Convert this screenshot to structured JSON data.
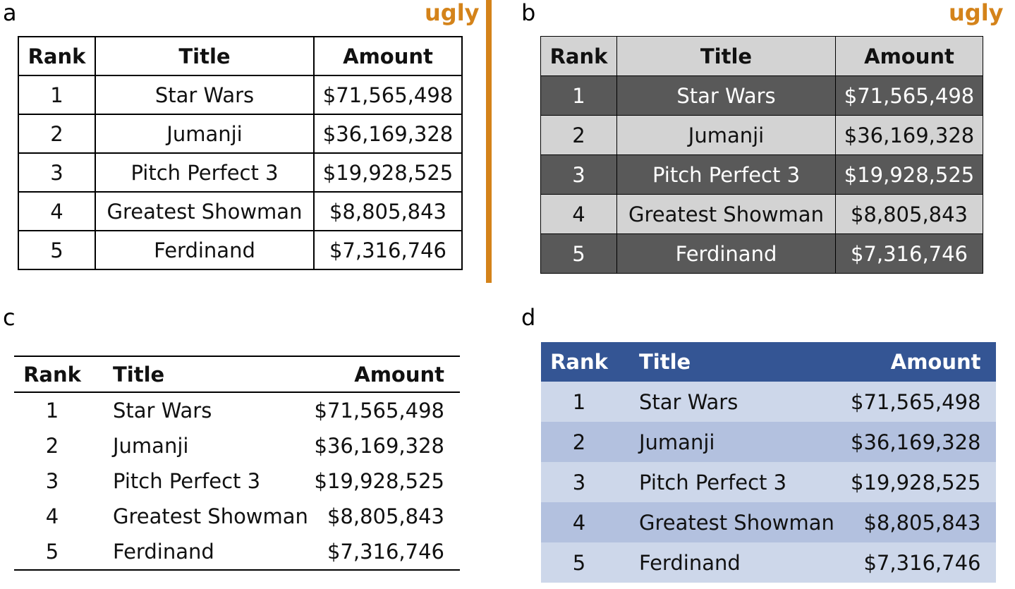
{
  "panels": {
    "a": {
      "letter": "a",
      "badge": "ugly"
    },
    "b": {
      "letter": "b",
      "badge": "ugly"
    },
    "c": {
      "letter": "c"
    },
    "d": {
      "letter": "d"
    }
  },
  "colors": {
    "ugly": "#d4831a",
    "b_dark_row": "#595959",
    "b_light_row": "#d3d3d3",
    "d_header": "#345594",
    "d_row_light": "#cdd7ea",
    "d_row_dark": "#b3c1df"
  },
  "headers": {
    "rank": "Rank",
    "title": "Title",
    "amount": "Amount"
  },
  "rows": [
    {
      "rank": "1",
      "title": "Star Wars",
      "amount": "$71,565,498"
    },
    {
      "rank": "2",
      "title": "Jumanji",
      "amount": "$36,169,328"
    },
    {
      "rank": "3",
      "title": "Pitch Perfect 3",
      "amount": "$19,928,525"
    },
    {
      "rank": "4",
      "title": "Greatest Showman",
      "amount": "$8,805,843"
    },
    {
      "rank": "5",
      "title": "Ferdinand",
      "amount": "$7,316,746"
    }
  ]
}
